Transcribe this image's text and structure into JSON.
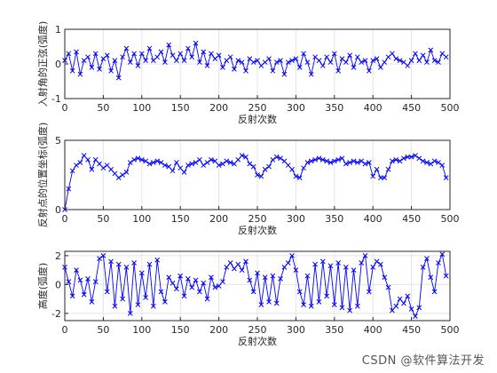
{
  "watermark": "CSDN @软件算法开发",
  "style": {
    "series_color": "#0000ff",
    "marker": "x",
    "grid": true
  },
  "chart_data": [
    {
      "type": "line",
      "xlabel": "反射次数",
      "ylabel": "入射角的正弦(弧度)",
      "xlim": [
        0,
        500
      ],
      "ylim": [
        -1,
        1
      ],
      "xticks": [
        0,
        50,
        100,
        150,
        200,
        250,
        300,
        350,
        400,
        450,
        500
      ],
      "yticks": [
        -1,
        0,
        1
      ],
      "grid": true,
      "x_step": 5,
      "series": [
        {
          "values": [
            0.1,
            0.3,
            -0.2,
            0.35,
            -0.3,
            0.1,
            0.2,
            -0.1,
            0.3,
            -0.15,
            0.15,
            0.25,
            -0.2,
            0.1,
            -0.4,
            0.2,
            0.45,
            0.05,
            0.3,
            -0.05,
            0.3,
            0.1,
            0.45,
            0.1,
            0.2,
            0.35,
            0.05,
            0.55,
            0.25,
            0.1,
            0.3,
            0.1,
            0.45,
            0.2,
            0.6,
            0.05,
            0.35,
            -0.05,
            0.3,
            0.15,
            0.25,
            -0.1,
            0.1,
            0.2,
            -0.15,
            0.1,
            0.05,
            -0.2,
            0.15,
            0.05,
            0.1,
            -0.05,
            0.05,
            0.15,
            -0.2,
            0.05,
            0.1,
            -0.3,
            0.05,
            0.1,
            0.15,
            -0.1,
            0.3,
            0.05,
            -0.3,
            0.2,
            0.1,
            -0.05,
            0.2,
            0.05,
            0.3,
            -0.2,
            0.15,
            0.05,
            0.25,
            -0.1,
            0.2,
            0.05,
            0.1,
            -0.2,
            0.1,
            0.15,
            -0.1,
            0.05,
            0.2,
            0.3,
            0.15,
            0.1,
            0.05,
            -0.05,
            0.1,
            0.3,
            0.1,
            0.25,
            0.05,
            0.4,
            0.1,
            0.05,
            0.3,
            0.2
          ]
        }
      ]
    },
    {
      "type": "line",
      "xlabel": "反射次数",
      "ylabel": "反射点的位置坐标(弧度)",
      "xlim": [
        0,
        500
      ],
      "ylim": [
        0,
        5
      ],
      "xticks": [
        0,
        50,
        100,
        150,
        200,
        250,
        300,
        350,
        400,
        450,
        500
      ],
      "yticks": [
        0,
        5
      ],
      "grid": true,
      "x_step": 5,
      "series": [
        {
          "values": [
            0.0,
            1.5,
            2.8,
            3.2,
            3.4,
            3.9,
            3.6,
            2.9,
            3.6,
            3.3,
            3.0,
            3.2,
            2.9,
            2.6,
            2.3,
            2.5,
            2.7,
            3.4,
            3.6,
            3.7,
            3.6,
            3.5,
            3.3,
            3.4,
            3.5,
            3.4,
            3.2,
            3.1,
            2.8,
            3.4,
            3.0,
            2.7,
            3.2,
            3.3,
            3.4,
            3.6,
            3.2,
            3.4,
            3.6,
            3.5,
            3.2,
            3.3,
            3.5,
            3.4,
            3.3,
            3.6,
            3.9,
            3.8,
            3.3,
            3.1,
            2.5,
            2.4,
            2.9,
            3.1,
            3.6,
            3.8,
            3.7,
            3.5,
            3.2,
            2.9,
            2.4,
            2.3,
            3.0,
            3.4,
            3.5,
            3.6,
            3.7,
            3.6,
            3.5,
            3.4,
            3.5,
            3.6,
            3.7,
            3.3,
            3.4,
            3.5,
            3.4,
            3.5,
            3.3,
            3.4,
            2.4,
            2.9,
            2.3,
            2.3,
            2.9,
            3.5,
            3.6,
            3.5,
            3.7,
            3.8,
            3.8,
            3.9,
            3.7,
            3.5,
            3.4,
            3.3,
            3.5,
            3.4,
            3.2,
            2.3
          ]
        }
      ]
    },
    {
      "type": "line",
      "xlabel": "反射次数",
      "ylabel": "高度(弧度)",
      "xlim": [
        0,
        500
      ],
      "ylim": [
        -2.5,
        2.3
      ],
      "xticks": [
        0,
        50,
        100,
        150,
        200,
        250,
        300,
        350,
        400,
        450,
        500
      ],
      "yticks": [
        -2,
        0,
        2
      ],
      "grid": true,
      "x_step": 5,
      "series": [
        {
          "values": [
            1.2,
            0.2,
            -0.8,
            1.0,
            0.3,
            -0.7,
            0.4,
            -1.2,
            0.2,
            1.8,
            2.0,
            -0.5,
            1.6,
            -1.5,
            1.4,
            -1.0,
            1.2,
            -2.0,
            1.5,
            -1.4,
            0.8,
            -0.9,
            1.4,
            -1.5,
            1.7,
            -0.5,
            -1.2,
            0.5,
            0.1,
            -0.3,
            0.6,
            -0.8,
            0.4,
            -0.2,
            0.3,
            -0.5,
            0.1,
            -1.0,
            0.5,
            -0.2,
            -0.1,
            0.2,
            1.2,
            1.5,
            1.1,
            1.4,
            1.0,
            1.6,
            0.3,
            -0.5,
            0.8,
            -1.4,
            0.5,
            -1.2,
            0.6,
            -1.3,
            0.4,
            1.2,
            1.5,
            2.0,
            1.0,
            -0.5,
            -1.4,
            0.6,
            -1.5,
            1.4,
            -1.2,
            1.6,
            -0.8,
            1.3,
            -1.4,
            1.5,
            -1.6,
            1.2,
            -1.8,
            1.0,
            -1.5,
            1.5,
            2.0,
            -0.5,
            1.2,
            1.6,
            1.4,
            0.5,
            -0.2,
            -1.8,
            -1.5,
            -1.0,
            -1.3,
            -0.8,
            -1.7,
            -2.2,
            -1.6,
            1.2,
            1.8,
            0.5,
            -0.5,
            1.5,
            2.1,
            0.6
          ]
        }
      ]
    }
  ]
}
